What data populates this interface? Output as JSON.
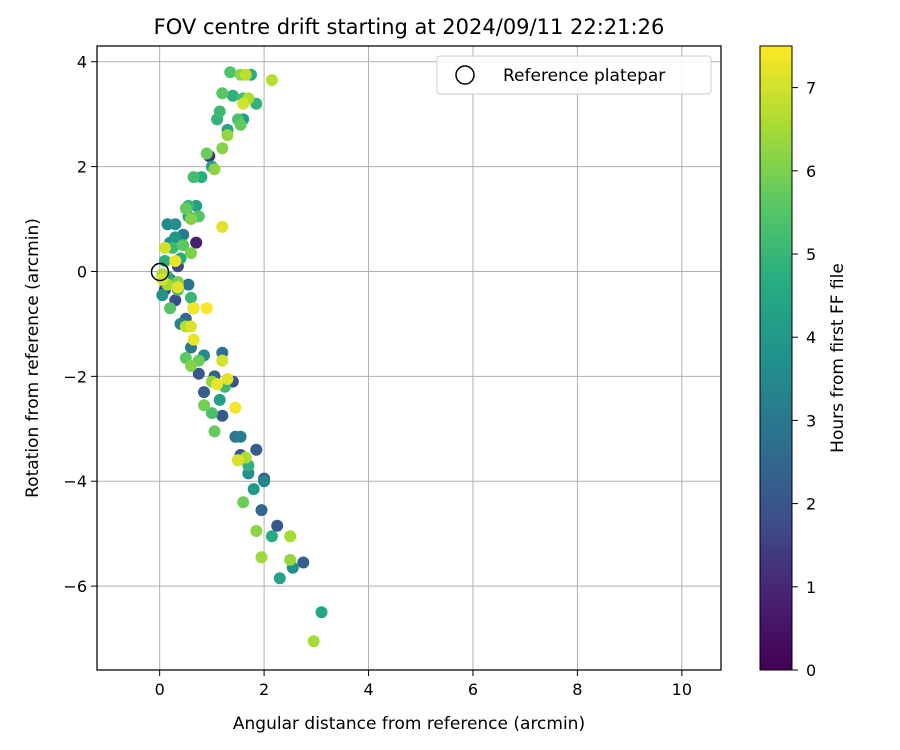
{
  "chart_data": {
    "type": "scatter",
    "title": "FOV centre drift starting at 2024/09/11 22:21:26",
    "xlabel": "Angular distance from reference (arcmin)",
    "ylabel": "Rotation from reference (arcmin)",
    "xlim": [
      -1.2,
      10.75
    ],
    "ylim": [
      -7.6,
      4.3
    ],
    "xticks": [
      0,
      2,
      4,
      6,
      8,
      10
    ],
    "yticks": [
      -6,
      -4,
      -2,
      0,
      2,
      4
    ],
    "grid": true,
    "legend": {
      "position": "top-right",
      "entries": [
        "Reference platepar"
      ]
    },
    "reference_point": {
      "x": 0,
      "y": 0
    },
    "colorbar": {
      "label": "Hours from first FF file",
      "colormap": "viridis",
      "range": [
        0,
        7.5
      ],
      "ticks": [
        0,
        1,
        2,
        3,
        4,
        5,
        6,
        7
      ]
    },
    "series": [
      {
        "values": [
          {
            "x": 0.7,
            "y": 0.55,
            "c": 0.8
          },
          {
            "x": 0.65,
            "y": -0.7,
            "c": 1.0
          },
          {
            "x": 0.95,
            "y": 2.2,
            "c": 1.2
          },
          {
            "x": 0.1,
            "y": -0.35,
            "c": 1.5
          },
          {
            "x": 0.3,
            "y": -0.55,
            "c": 1.8
          },
          {
            "x": 0.35,
            "y": 0.1,
            "c": 1.6
          },
          {
            "x": 0.75,
            "y": -1.95,
            "c": 2.0
          },
          {
            "x": 0.85,
            "y": -2.3,
            "c": 2.2
          },
          {
            "x": 1.05,
            "y": -2.0,
            "c": 2.3
          },
          {
            "x": 1.4,
            "y": -2.1,
            "c": 1.9
          },
          {
            "x": 1.2,
            "y": -2.75,
            "c": 2.1
          },
          {
            "x": 1.55,
            "y": -3.5,
            "c": 2.0
          },
          {
            "x": 1.85,
            "y": -3.4,
            "c": 2.2
          },
          {
            "x": 2.0,
            "y": -3.95,
            "c": 2.3
          },
          {
            "x": 2.25,
            "y": -4.85,
            "c": 2.1
          },
          {
            "x": 2.75,
            "y": -5.55,
            "c": 2.3
          },
          {
            "x": 1.95,
            "y": -4.55,
            "c": 2.5
          },
          {
            "x": 0.5,
            "y": -0.9,
            "c": 2.6
          },
          {
            "x": 0.55,
            "y": -0.25,
            "c": 2.8
          },
          {
            "x": 0.2,
            "y": -0.15,
            "c": 3.0
          },
          {
            "x": 1.2,
            "y": -1.55,
            "c": 2.8
          },
          {
            "x": 1.45,
            "y": -3.15,
            "c": 2.9
          },
          {
            "x": 0.45,
            "y": 0.7,
            "c": 3.1
          },
          {
            "x": 0.6,
            "y": -1.45,
            "c": 3.0
          },
          {
            "x": 0.15,
            "y": 0.9,
            "c": 3.5
          },
          {
            "x": 0.3,
            "y": 0.9,
            "c": 3.7
          },
          {
            "x": 0.4,
            "y": -1.0,
            "c": 3.3
          },
          {
            "x": 0.85,
            "y": -1.6,
            "c": 3.5
          },
          {
            "x": 1.55,
            "y": -3.15,
            "c": 3.2
          },
          {
            "x": 1.7,
            "y": -3.85,
            "c": 3.6
          },
          {
            "x": 2.0,
            "y": -4.0,
            "c": 3.4
          },
          {
            "x": 2.55,
            "y": -5.65,
            "c": 3.7
          },
          {
            "x": 0.05,
            "y": -0.45,
            "c": 3.8
          },
          {
            "x": 0.2,
            "y": 0.55,
            "c": 3.9
          },
          {
            "x": 0.3,
            "y": 0.65,
            "c": 4.0
          },
          {
            "x": 0.7,
            "y": 1.25,
            "c": 4.2
          },
          {
            "x": 1.0,
            "y": 2.0,
            "c": 4.3
          },
          {
            "x": 1.6,
            "y": 2.9,
            "c": 4.1
          },
          {
            "x": 1.3,
            "y": 2.7,
            "c": 4.4
          },
          {
            "x": 1.15,
            "y": -2.45,
            "c": 4.2
          },
          {
            "x": 1.8,
            "y": -4.15,
            "c": 4.0
          },
          {
            "x": 2.3,
            "y": -5.85,
            "c": 4.3
          },
          {
            "x": 3.1,
            "y": -6.5,
            "c": 4.5
          },
          {
            "x": 2.15,
            "y": -5.05,
            "c": 4.6
          },
          {
            "x": 0.15,
            "y": -0.1,
            "c": 4.5
          },
          {
            "x": 0.4,
            "y": 0.25,
            "c": 4.7
          },
          {
            "x": 0.1,
            "y": 0.2,
            "c": 4.8
          },
          {
            "x": 0.55,
            "y": 1.05,
            "c": 4.6
          },
          {
            "x": 0.8,
            "y": 1.8,
            "c": 4.7
          },
          {
            "x": 1.1,
            "y": 2.9,
            "c": 4.9
          },
          {
            "x": 1.4,
            "y": 3.35,
            "c": 4.8
          },
          {
            "x": 1.75,
            "y": 3.75,
            "c": 4.7
          },
          {
            "x": 1.85,
            "y": 3.2,
            "c": 4.9
          },
          {
            "x": 1.5,
            "y": -3.6,
            "c": 4.6
          },
          {
            "x": 1.7,
            "y": -3.7,
            "c": 4.8
          },
          {
            "x": 0.6,
            "y": -0.5,
            "c": 5.0
          },
          {
            "x": 0.25,
            "y": 0.45,
            "c": 5.1
          },
          {
            "x": 0.35,
            "y": -0.35,
            "c": 5.2
          },
          {
            "x": 0.55,
            "y": 1.25,
            "c": 5.0
          },
          {
            "x": 0.65,
            "y": 1.8,
            "c": 5.2
          },
          {
            "x": 1.15,
            "y": 3.05,
            "c": 5.1
          },
          {
            "x": 1.5,
            "y": 2.9,
            "c": 5.3
          },
          {
            "x": 1.6,
            "y": 3.3,
            "c": 5.2
          },
          {
            "x": 1.35,
            "y": 3.8,
            "c": 5.4
          },
          {
            "x": 1.0,
            "y": -2.7,
            "c": 5.3
          },
          {
            "x": 1.25,
            "y": -2.2,
            "c": 5.1
          },
          {
            "x": 0.2,
            "y": -0.7,
            "c": 5.5
          },
          {
            "x": 0.45,
            "y": 0.5,
            "c": 5.6
          },
          {
            "x": 0.5,
            "y": 1.2,
            "c": 5.7
          },
          {
            "x": 0.75,
            "y": 1.05,
            "c": 5.5
          },
          {
            "x": 0.9,
            "y": 2.25,
            "c": 5.8
          },
          {
            "x": 1.2,
            "y": 3.4,
            "c": 5.6
          },
          {
            "x": 1.55,
            "y": 2.8,
            "c": 5.7
          },
          {
            "x": 0.5,
            "y": -1.65,
            "c": 5.6
          },
          {
            "x": 0.75,
            "y": -1.7,
            "c": 5.8
          },
          {
            "x": 0.85,
            "y": -2.55,
            "c": 5.9
          },
          {
            "x": 1.05,
            "y": -3.05,
            "c": 5.7
          },
          {
            "x": 1.6,
            "y": -4.4,
            "c": 5.8
          },
          {
            "x": 0.35,
            "y": -0.2,
            "c": 6.0
          },
          {
            "x": 0.6,
            "y": 1.0,
            "c": 6.1
          },
          {
            "x": 0.6,
            "y": 0.35,
            "c": 6.0
          },
          {
            "x": 1.05,
            "y": 1.95,
            "c": 6.2
          },
          {
            "x": 1.2,
            "y": 2.35,
            "c": 6.1
          },
          {
            "x": 1.3,
            "y": 2.6,
            "c": 6.3
          },
          {
            "x": 1.55,
            "y": 3.75,
            "c": 6.2
          },
          {
            "x": 0.6,
            "y": -1.8,
            "c": 6.1
          },
          {
            "x": 1.0,
            "y": -2.1,
            "c": 6.3
          },
          {
            "x": 1.85,
            "y": -4.95,
            "c": 6.2
          },
          {
            "x": 1.95,
            "y": -5.45,
            "c": 6.4
          },
          {
            "x": 2.5,
            "y": -5.5,
            "c": 6.3
          },
          {
            "x": 2.95,
            "y": -7.05,
            "c": 6.5
          },
          {
            "x": 0.05,
            "y": -0.05,
            "c": 6.6
          },
          {
            "x": 0.15,
            "y": -0.25,
            "c": 6.5
          },
          {
            "x": 0.5,
            "y": -1.05,
            "c": 6.7
          },
          {
            "x": 1.7,
            "y": 3.3,
            "c": 6.6
          },
          {
            "x": 1.65,
            "y": 3.75,
            "c": 6.8
          },
          {
            "x": 2.15,
            "y": 3.65,
            "c": 6.7
          },
          {
            "x": 1.65,
            "y": -3.55,
            "c": 6.6
          },
          {
            "x": 2.5,
            "y": -5.05,
            "c": 6.5
          },
          {
            "x": 1.6,
            "y": 3.2,
            "c": 7.0
          },
          {
            "x": 1.2,
            "y": 0.85,
            "c": 7.2
          },
          {
            "x": 0.1,
            "y": 0.45,
            "c": 7.0
          },
          {
            "x": 0.3,
            "y": 0.2,
            "c": 7.3
          },
          {
            "x": 0.35,
            "y": -0.3,
            "c": 7.2
          },
          {
            "x": 0.6,
            "y": -1.05,
            "c": 7.1
          },
          {
            "x": 0.65,
            "y": -1.3,
            "c": 7.3
          },
          {
            "x": 0.65,
            "y": -0.7,
            "c": 7.4
          },
          {
            "x": 0.9,
            "y": -0.7,
            "c": 7.5
          },
          {
            "x": 1.1,
            "y": -2.15,
            "c": 7.3
          },
          {
            "x": 1.2,
            "y": -1.7,
            "c": 7.0
          },
          {
            "x": 1.3,
            "y": -2.05,
            "c": 7.2
          },
          {
            "x": 1.45,
            "y": -2.6,
            "c": 7.4
          },
          {
            "x": 1.5,
            "y": -3.6,
            "c": 7.1
          },
          {
            "x": 0.05,
            "y": -0.15,
            "c": 7.0
          }
        ]
      }
    ]
  }
}
